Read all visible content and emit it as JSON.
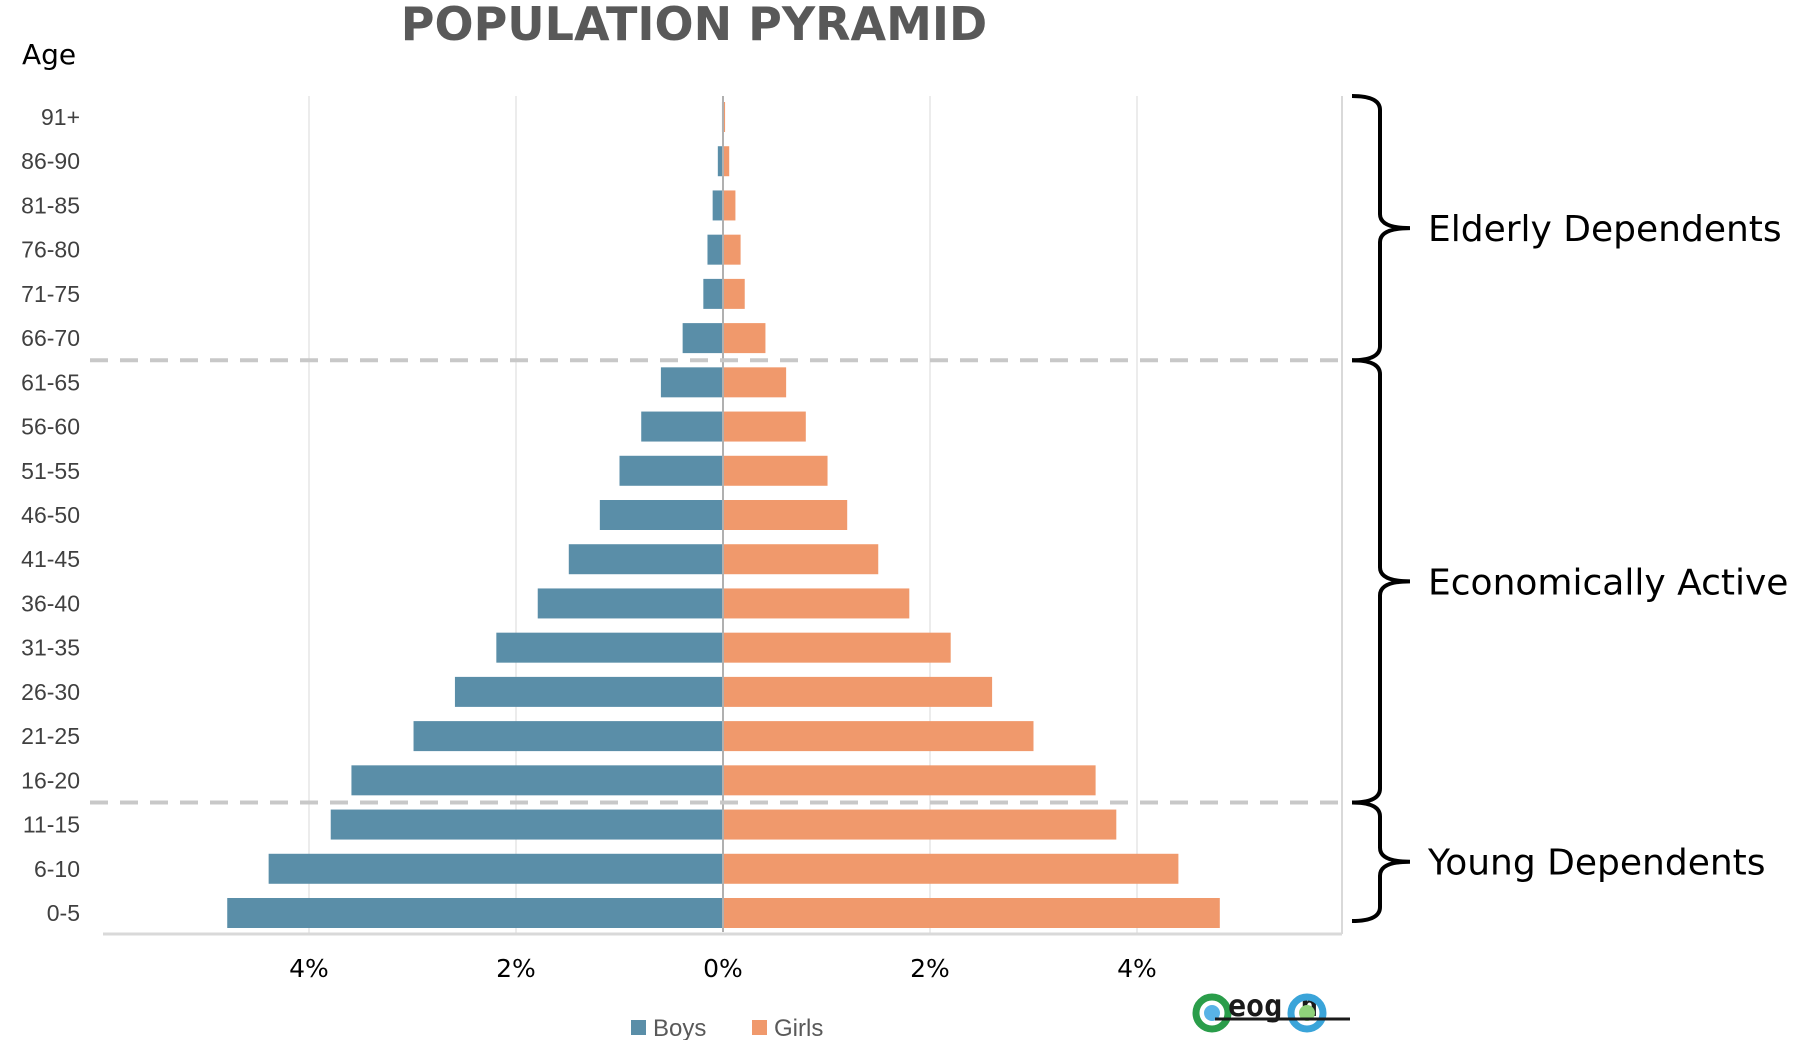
{
  "chart_data": {
    "type": "bar",
    "orientation": "horizontal",
    "title": "POPULATION PYRAMID",
    "ylabel": "Age",
    "categories": [
      "91+",
      "86-90",
      "81-85",
      "76-80",
      "71-75",
      "66-70",
      "61-65",
      "56-60",
      "51-55",
      "46-50",
      "41-45",
      "36-40",
      "31-35",
      "26-30",
      "21-25",
      "16-20",
      "11-15",
      "6-10",
      "0-5"
    ],
    "series": [
      {
        "name": "Boys",
        "color": "#5a8ea8",
        "values": [
          0.01,
          0.05,
          0.1,
          0.15,
          0.19,
          0.39,
          0.6,
          0.79,
          1.0,
          1.19,
          1.49,
          1.79,
          2.19,
          2.59,
          2.99,
          3.59,
          3.79,
          4.39,
          4.79
        ]
      },
      {
        "name": "Girls",
        "color": "#f0996c",
        "values": [
          0.02,
          0.06,
          0.12,
          0.17,
          0.21,
          0.41,
          0.61,
          0.8,
          1.01,
          1.2,
          1.5,
          1.8,
          2.2,
          2.6,
          3.0,
          3.6,
          3.8,
          4.4,
          4.8
        ]
      }
    ],
    "xlim": [
      -6,
      6
    ],
    "xticks": [
      {
        "value": -4,
        "label": "4%"
      },
      {
        "value": -2,
        "label": "2%"
      },
      {
        "value": 0,
        "label": "0%"
      },
      {
        "value": 2,
        "label": "2%"
      },
      {
        "value": 4,
        "label": "4%"
      }
    ],
    "grid": true,
    "legend": "bottom",
    "groups": [
      {
        "label": "Elderly Dependents",
        "from": "66-70",
        "to": "91+"
      },
      {
        "label": "Economically Active",
        "from": "16-20",
        "to": "61-65"
      },
      {
        "label": "Young Dependents",
        "from": "0-5",
        "to": "11-15"
      }
    ]
  },
  "logo": {
    "text": "eog n"
  }
}
